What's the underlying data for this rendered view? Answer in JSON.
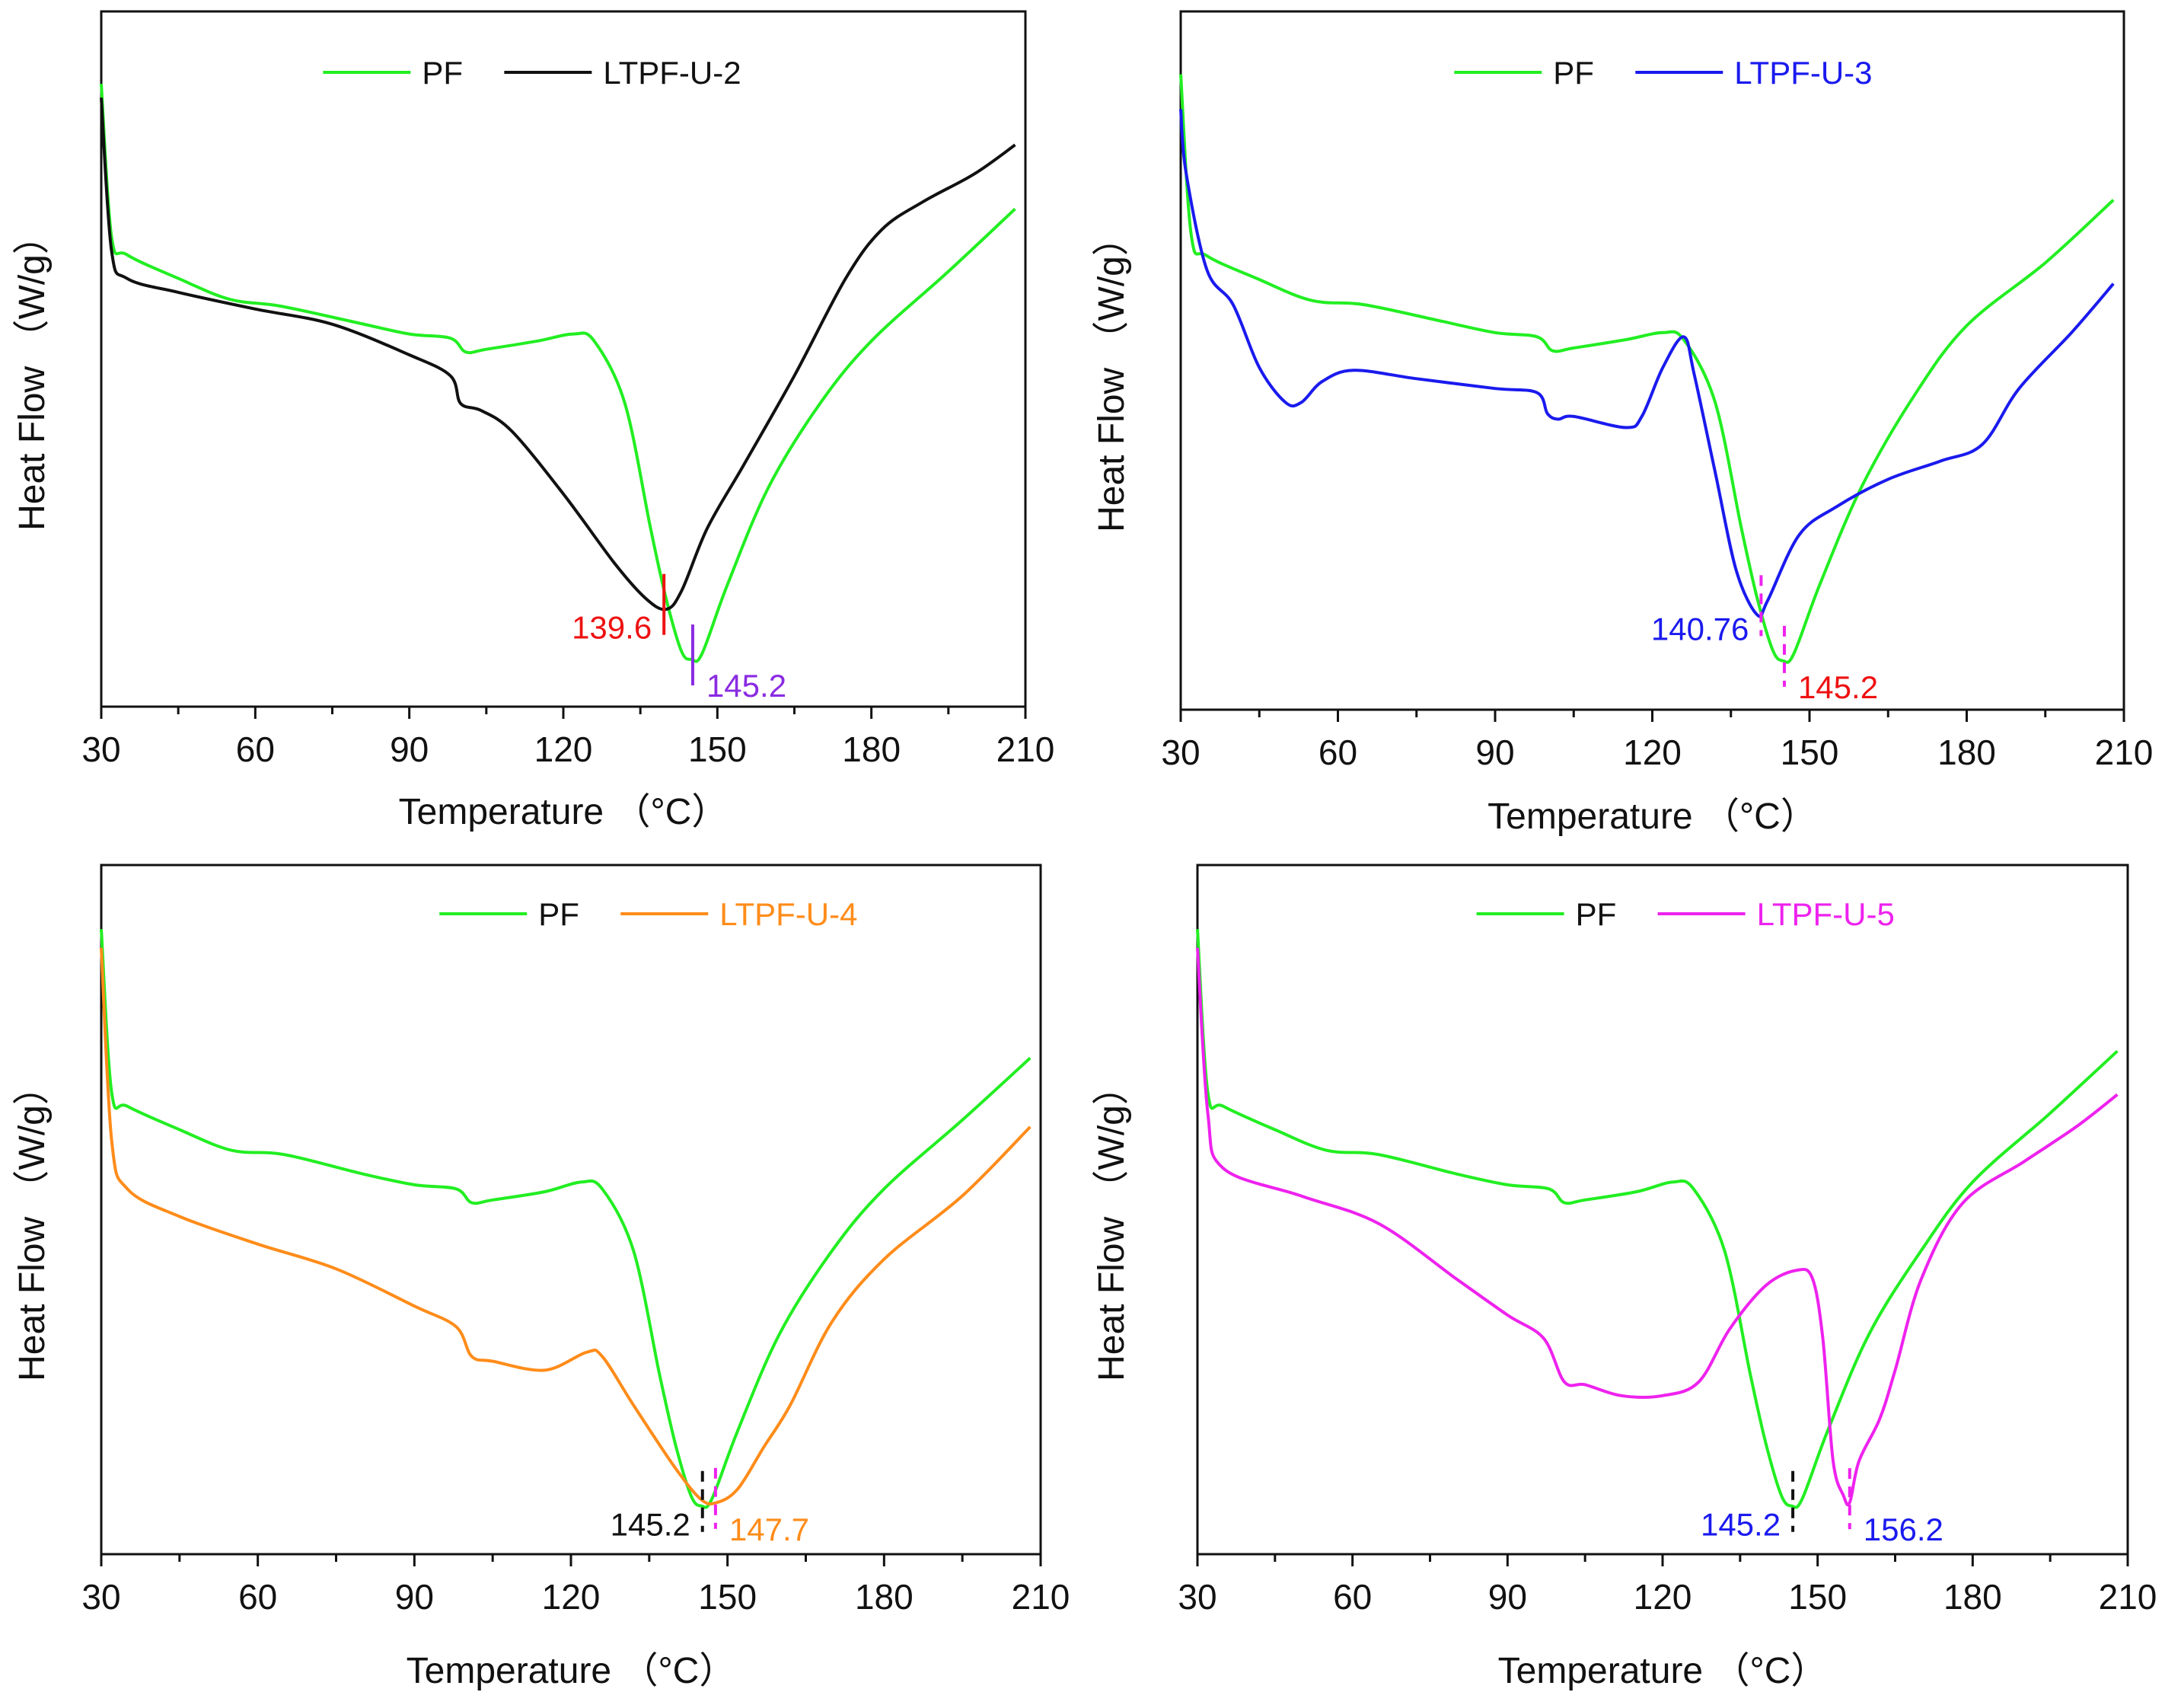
{
  "chart_data": [
    {
      "type": "line",
      "panel": "top-left",
      "xlabel": "Temperature （°C）",
      "ylabel": "Heat Flow （W/g）",
      "xlim": [
        30,
        210
      ],
      "xticks": [
        30,
        60,
        90,
        120,
        150,
        180,
        210
      ],
      "ylim": [
        0,
        100
      ],
      "y_units": "relative (no tick values shown)",
      "grid": false,
      "legend_placement": "top-center",
      "series": [
        {
          "name": "PF",
          "color": "#22ee22",
          "label_color": "#111111",
          "x": [
            30,
            32,
            35,
            45,
            55,
            65,
            80,
            90,
            98,
            101,
            105,
            115,
            122,
            126,
            132,
            137,
            140,
            143,
            145,
            147,
            152,
            160,
            170,
            180,
            195,
            208
          ],
          "y": [
            89.6,
            67.6,
            65,
            61.6,
            58.6,
            57.6,
            55.2,
            53.6,
            53,
            51,
            51.4,
            52.6,
            53.6,
            52.6,
            43.6,
            25.6,
            15.6,
            8,
            6.8,
            7.6,
            17.6,
            31.6,
            43.6,
            52.6,
            62.6,
            71.6
          ]
        },
        {
          "name": "LTPF-U-2",
          "color": "#111111",
          "label_color": "#111111",
          "x": [
            30,
            32,
            35,
            45,
            60,
            75,
            90,
            98,
            100,
            104,
            110,
            120,
            130,
            136,
            140,
            143,
            148,
            155,
            165,
            175,
            182,
            190,
            200,
            208
          ],
          "y": [
            87.6,
            65.6,
            61.6,
            59.6,
            57.2,
            55,
            50.6,
            47.6,
            43.6,
            42.6,
            39.6,
            30.6,
            20.6,
            15.6,
            14,
            16.6,
            25.6,
            34.6,
            47.6,
            61.6,
            68.6,
            72.6,
            76.6,
            80.8
          ]
        }
      ],
      "annotations": [
        {
          "text": "139.6",
          "x": 139.6,
          "series": 1,
          "marker_color": "#ee1111",
          "label_color": "#ee1111",
          "dashed": false,
          "side": "left"
        },
        {
          "text": "145.2",
          "x": 145.2,
          "series": 0,
          "marker_color": "#8a2be2",
          "label_color": "#8a2be2",
          "dashed": false,
          "side": "right"
        }
      ]
    },
    {
      "type": "line",
      "panel": "top-right",
      "xlabel": "Temperature （°C）",
      "ylabel": "Heat Flow （W/g）",
      "xlim": [
        30,
        210
      ],
      "xticks": [
        30,
        60,
        90,
        120,
        150,
        180,
        210
      ],
      "ylim": [
        0,
        100
      ],
      "y_units": "relative (no tick values shown)",
      "grid": false,
      "legend_placement": "top-center",
      "series": [
        {
          "name": "PF",
          "color": "#22ee22",
          "label_color": "#111111",
          "x": [
            30,
            32,
            35,
            45,
            55,
            65,
            80,
            90,
            98,
            101,
            105,
            115,
            122,
            126,
            132,
            137,
            140,
            143,
            145,
            147,
            152,
            160,
            170,
            180,
            195,
            208
          ],
          "y": [
            91,
            68,
            65,
            61.6,
            58.6,
            58,
            55.6,
            54,
            53.4,
            51.4,
            51.8,
            53,
            54,
            53,
            44,
            26,
            16,
            8.5,
            7,
            8,
            18,
            32,
            45,
            55,
            64,
            73
          ]
        },
        {
          "name": "LTPF-U-3",
          "color": "#1a1aee",
          "label_color": "#1a1aee",
          "x": [
            30,
            31,
            35,
            40,
            45,
            50,
            53,
            57,
            63,
            75,
            90,
            98,
            100,
            102,
            105,
            115,
            118,
            122,
            126,
            128,
            132,
            136,
            140,
            142,
            148,
            155,
            165,
            175,
            183,
            190,
            200,
            208
          ],
          "y": [
            86,
            77,
            63,
            58,
            49,
            44,
            44,
            47,
            48.6,
            47.4,
            46,
            45.4,
            42.4,
            41.6,
            42,
            40.4,
            42,
            49,
            53.4,
            48,
            34,
            20,
            13.6,
            15.6,
            25,
            29,
            33,
            35.6,
            38,
            46,
            54,
            61
          ]
        }
      ],
      "annotations": [
        {
          "text": "140.76",
          "x": 140.76,
          "series": 1,
          "marker_color": "#ee22ee",
          "label_color": "#1a1aee",
          "dashed": true,
          "side": "left"
        },
        {
          "text": "145.2",
          "x": 145.2,
          "series": 0,
          "marker_color": "#ee22ee",
          "label_color": "#ee1111",
          "dashed": true,
          "side": "right"
        }
      ]
    },
    {
      "type": "line",
      "panel": "bottom-left",
      "xlabel": "Temperature （°C）",
      "ylabel": "Heat Flow （W/g）",
      "xlim": [
        30,
        210
      ],
      "xticks": [
        30,
        60,
        90,
        120,
        150,
        180,
        210
      ],
      "ylim": [
        0,
        100
      ],
      "y_units": "relative (no tick values shown)",
      "grid": false,
      "legend_placement": "top-center",
      "series": [
        {
          "name": "PF",
          "color": "#22ee22",
          "label_color": "#111111",
          "x": [
            30,
            32,
            35,
            45,
            55,
            65,
            80,
            90,
            98,
            101,
            105,
            115,
            122,
            126,
            132,
            137,
            140,
            143,
            145,
            147,
            152,
            160,
            170,
            180,
            195,
            208
          ],
          "y": [
            90.7,
            67,
            65,
            61.6,
            58.6,
            58,
            55.2,
            53.6,
            53,
            51,
            51.4,
            52.6,
            54,
            53,
            44,
            26,
            16,
            8.5,
            7,
            8,
            18,
            32,
            44,
            53,
            63,
            72
          ]
        },
        {
          "name": "LTPF-U-4",
          "color": "#ff8c1a",
          "label_color": "#ff8c1a",
          "x": [
            30,
            32,
            35,
            45,
            60,
            75,
            90,
            98,
            101,
            105,
            115,
            123,
            126,
            132,
            140,
            145,
            148,
            152,
            157,
            162,
            170,
            180,
            195,
            208
          ],
          "y": [
            88,
            60,
            53,
            49,
            45,
            41.4,
            36,
            33,
            28.7,
            28,
            26.7,
            29.3,
            28.7,
            21.6,
            12.5,
            7.9,
            7.5,
            9.5,
            15.6,
            21.6,
            33.7,
            42.8,
            52,
            62
          ]
        }
      ],
      "annotations": [
        {
          "text": "145.2",
          "x": 145.2,
          "series": 0,
          "marker_color": "#111111",
          "label_color": "#111111",
          "dashed": true,
          "side": "left"
        },
        {
          "text": "147.7",
          "x": 147.7,
          "series": 1,
          "marker_color": "#ee22ee",
          "label_color": "#ff8c1a",
          "dashed": true,
          "side": "right"
        }
      ]
    },
    {
      "type": "line",
      "panel": "bottom-right",
      "xlabel": "Temperature （°C）",
      "ylabel": "Heat Flow （W/g）",
      "xlim": [
        30,
        210
      ],
      "xticks": [
        30,
        60,
        90,
        120,
        150,
        180,
        210
      ],
      "ylim": [
        0,
        100
      ],
      "y_units": "relative (no tick values shown)",
      "grid": false,
      "legend_placement": "top-center",
      "series": [
        {
          "name": "PF",
          "color": "#22ee22",
          "label_color": "#111111",
          "x": [
            30,
            32,
            35,
            45,
            55,
            65,
            80,
            90,
            98,
            101,
            105,
            115,
            122,
            126,
            132,
            137,
            140,
            143,
            145,
            147,
            152,
            160,
            170,
            180,
            195,
            208
          ],
          "y": [
            90.7,
            67,
            65,
            61.6,
            58.6,
            58,
            55.2,
            53.6,
            53,
            51,
            51.4,
            52.6,
            54,
            53,
            44,
            26,
            16,
            8.5,
            7,
            8,
            18,
            32,
            44,
            54,
            64,
            73
          ]
        },
        {
          "name": "LTPF-U-5",
          "color": "#ee22ee",
          "label_color": "#ee22ee",
          "x": [
            30,
            32,
            35,
            50,
            65,
            80,
            90,
            97,
            101,
            105,
            112,
            120,
            127,
            133,
            140,
            146,
            149,
            151,
            153,
            155,
            156.2,
            158,
            162,
            165,
            170,
            178,
            190,
            200,
            208
          ],
          "y": [
            88,
            64,
            56,
            52,
            48,
            40,
            34.7,
            31.3,
            25,
            24.6,
            23,
            23,
            25,
            32.7,
            39,
            41.2,
            40,
            31.3,
            13.5,
            8.5,
            7.5,
            13.5,
            19.6,
            26.7,
            39.8,
            50.9,
            57,
            62,
            66.7
          ]
        }
      ],
      "annotations": [
        {
          "text": "145.2",
          "x": 145.2,
          "series": 0,
          "marker_color": "#111111",
          "label_color": "#1a1aee",
          "dashed": true,
          "side": "left"
        },
        {
          "text": "156.2",
          "x": 156.2,
          "series": 1,
          "marker_color": "#ee22ee",
          "label_color": "#1a1aee",
          "dashed": true,
          "side": "right"
        }
      ]
    }
  ]
}
